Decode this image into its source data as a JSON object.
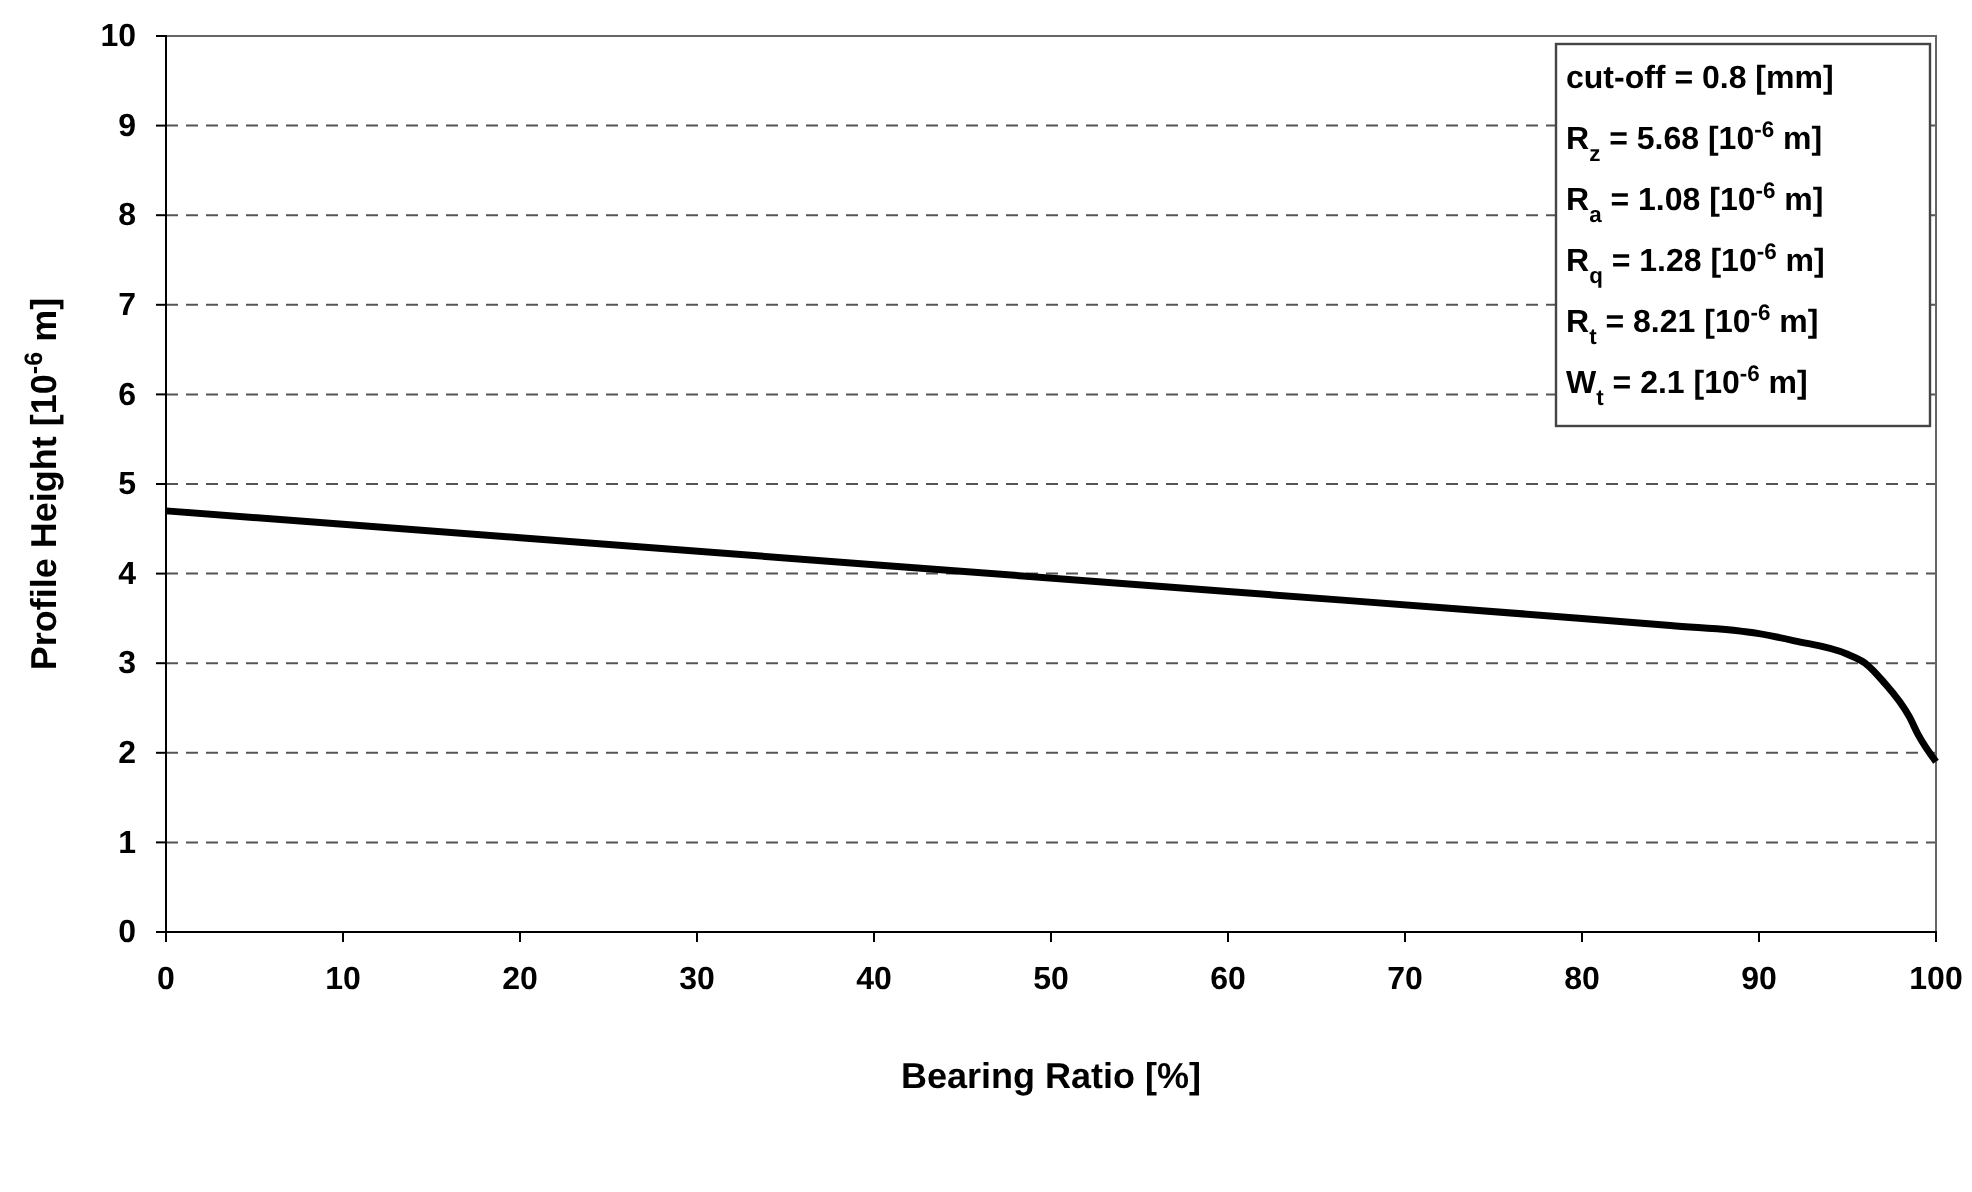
{
  "chart_data": {
    "type": "line",
    "xlabel": "Bearing Ratio [%]",
    "ylabel": "Profile Height [10$^{-6}$ m]",
    "x": [
      0,
      20,
      40,
      60,
      80,
      85,
      90,
      92,
      95,
      96,
      97,
      98.5,
      99,
      100
    ],
    "series": [
      {
        "color": "#000000",
        "values": [
          4.7,
          4.4,
          4.1,
          3.8,
          3.5,
          3.42,
          3.33,
          3.25,
          3.1,
          3.0,
          2.8,
          2.4,
          2.2,
          1.9
        ]
      }
    ],
    "xlim": [
      0,
      100
    ],
    "xticks": [
      0,
      10,
      20,
      30,
      40,
      50,
      60,
      70,
      80,
      90,
      100
    ],
    "ylim": [
      0,
      10
    ],
    "yticks": [
      0,
      1,
      2,
      3,
      4,
      5,
      6,
      7,
      8,
      9,
      10
    ],
    "grid": "y",
    "marker": "none",
    "line_style": "solid",
    "annotations": [
      "cut-off = 0.8 [mm]",
      "R$_{z}$ = 5.68  [10$^{-6}$ m]",
      "R$_{a}$ = 1.08  [10$^{-6}$ m]",
      "R$_{q}$ = 1.28  [10$^{-6}$ m]",
      "R$_{t}$ = 8.21   [10$^{-6}$ m]",
      "W$_{t}$ = 2.1  [10$^{-6}$ m]"
    ]
  }
}
